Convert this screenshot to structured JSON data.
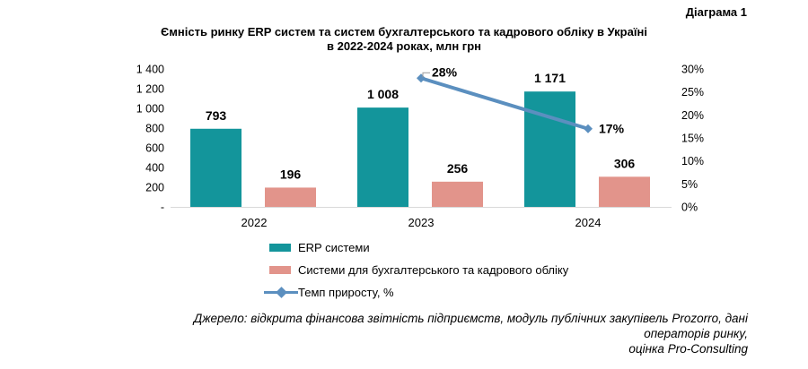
{
  "diagram_label": "Діаграма 1",
  "title_line1": "Ємність ринку ERP систем та систем бухгалтерського та кадрового обліку в Україні",
  "title_line2": "в 2022-2024 роках, млн грн",
  "colors": {
    "erp": "#13959b",
    "accounting": "#e2948b",
    "growth": "#5b8fbf",
    "axis": "#d9d9d9"
  },
  "chart_data": {
    "type": "bar",
    "title": "Ємність ринку ERP систем та систем бухгалтерського та кадрового обліку в Україні в 2022-2024 роках, млн грн",
    "categories": [
      "2022",
      "2023",
      "2024"
    ],
    "series": [
      {
        "name": "ERP системи",
        "type": "bar",
        "axis": "left",
        "values": [
          793,
          1008,
          1171
        ],
        "labels": [
          "793",
          "1 008",
          "1 171"
        ]
      },
      {
        "name": "Системи для бухгалтерського та кадрового обліку",
        "type": "bar",
        "axis": "left",
        "values": [
          196,
          256,
          306
        ],
        "labels": [
          "196",
          "256",
          "306"
        ]
      },
      {
        "name": "Темп приросту, %",
        "type": "line",
        "axis": "right",
        "x": [
          "2023",
          "2024"
        ],
        "values": [
          28,
          17
        ],
        "labels": [
          "28%",
          "17%"
        ]
      }
    ],
    "y_left": {
      "range": [
        0,
        1400
      ],
      "ticks": [
        0,
        200,
        400,
        600,
        800,
        1000,
        1200,
        1400
      ],
      "tick_labels": [
        "-",
        "200",
        "400",
        "600",
        "800",
        "1 000",
        "1 200",
        "1 400"
      ]
    },
    "y_right": {
      "range": [
        0,
        30
      ],
      "ticks": [
        0,
        5,
        10,
        15,
        20,
        25,
        30
      ],
      "tick_labels": [
        "0%",
        "5%",
        "10%",
        "15%",
        "20%",
        "25%",
        "30%"
      ]
    },
    "legend_position": "bottom"
  },
  "source_lines": [
    "Джерело: відкрита фінансова звітність підприємств, модуль публічних закупівель Prozorro, дані",
    "операторів ринку,",
    "оцінка Pro-Consulting"
  ]
}
